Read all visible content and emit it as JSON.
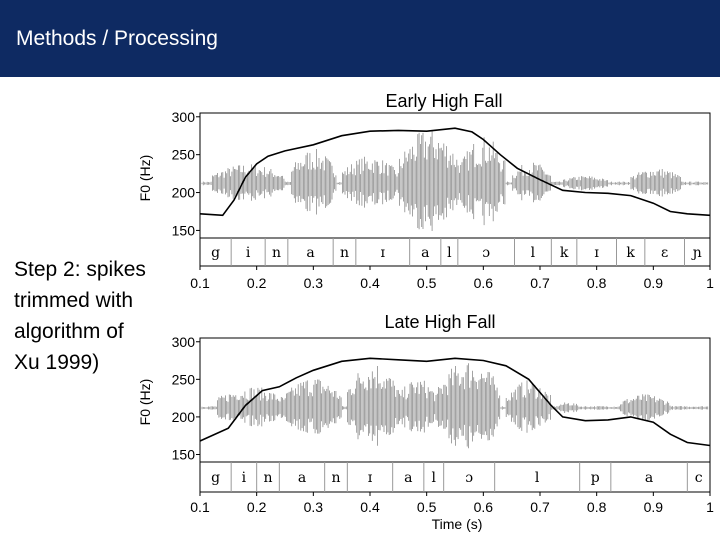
{
  "header": {
    "title": "Methods / Processing"
  },
  "side_text": {
    "lines": [
      "Step 2: spikes",
      "trimmed with",
      "algorithm of",
      "Xu 1999)"
    ]
  },
  "colors": {
    "header_bg": "#0e2a62",
    "waveform": "#8c8c8c",
    "pitch_track": "#000000"
  },
  "chart_data": [
    {
      "type": "line",
      "title": "Early High Fall",
      "xlabel": "",
      "ylabel": "F0 (Hz)",
      "xlim": [
        0.1,
        1.0
      ],
      "ylim": [
        140,
        305
      ],
      "x_ticks": [
        "0.1",
        "0.2",
        "0.3",
        "0.4",
        "0.5",
        "0.6",
        "0.7",
        "0.8",
        "0.9",
        "1"
      ],
      "y_ticks": [
        {
          "value": 300,
          "label": "300"
        },
        {
          "value": 250,
          "label": "250"
        },
        {
          "value": 200,
          "label": "200"
        },
        {
          "value": 150,
          "label": "150"
        }
      ],
      "segments": [
        {
          "label": "g",
          "start": 0.1,
          "end": 0.155
        },
        {
          "label": "i",
          "start": 0.155,
          "end": 0.215
        },
        {
          "label": "n",
          "start": 0.215,
          "end": 0.255
        },
        {
          "label": "a",
          "start": 0.255,
          "end": 0.335
        },
        {
          "label": "n",
          "start": 0.335,
          "end": 0.375
        },
        {
          "label": "ɪ",
          "start": 0.375,
          "end": 0.47
        },
        {
          "label": "a",
          "start": 0.47,
          "end": 0.525
        },
        {
          "label": "l",
          "start": 0.525,
          "end": 0.555
        },
        {
          "label": "ɔ",
          "start": 0.555,
          "end": 0.655
        },
        {
          "label": "l",
          "start": 0.655,
          "end": 0.72
        },
        {
          "label": "k",
          "start": 0.72,
          "end": 0.765
        },
        {
          "label": "ɪ",
          "start": 0.765,
          "end": 0.835
        },
        {
          "label": "k",
          "start": 0.835,
          "end": 0.885
        },
        {
          "label": "ɛ",
          "start": 0.885,
          "end": 0.955
        },
        {
          "label": "ɲ",
          "start": 0.955,
          "end": 1.0
        }
      ],
      "pitch": {
        "x": [
          0.1,
          0.14,
          0.16,
          0.18,
          0.2,
          0.22,
          0.25,
          0.3,
          0.35,
          0.4,
          0.45,
          0.5,
          0.55,
          0.58,
          0.6,
          0.63,
          0.66,
          0.7,
          0.74,
          0.78,
          0.82,
          0.86,
          0.9,
          0.93,
          0.96,
          1.0
        ],
        "y": [
          172,
          170,
          190,
          220,
          238,
          248,
          255,
          263,
          275,
          281,
          282,
          281,
          285,
          280,
          270,
          250,
          232,
          217,
          203,
          200,
          199,
          196,
          186,
          175,
          172,
          170
        ]
      },
      "waveform": [
        {
          "start": 0.12,
          "end": 0.25,
          "amp": 20
        },
        {
          "start": 0.26,
          "end": 0.34,
          "amp": 35
        },
        {
          "start": 0.35,
          "end": 0.45,
          "amp": 28
        },
        {
          "start": 0.45,
          "end": 0.56,
          "amp": 55
        },
        {
          "start": 0.56,
          "end": 0.64,
          "amp": 48
        },
        {
          "start": 0.65,
          "end": 0.72,
          "amp": 22
        },
        {
          "start": 0.74,
          "end": 0.82,
          "amp": 8
        },
        {
          "start": 0.86,
          "end": 0.95,
          "amp": 16
        }
      ]
    },
    {
      "type": "line",
      "title": "Late High Fall",
      "xlabel": "Time (s)",
      "ylabel": "F0 (Hz)",
      "xlim": [
        0.1,
        1.0
      ],
      "ylim": [
        140,
        305
      ],
      "x_ticks": [
        "0.1",
        "0.2",
        "0.3",
        "0.4",
        "0.5",
        "0.6",
        "0.7",
        "0.8",
        "0.9",
        "1"
      ],
      "y_ticks": [
        {
          "value": 300,
          "label": "300"
        },
        {
          "value": 250,
          "label": "250"
        },
        {
          "value": 200,
          "label": "200"
        },
        {
          "value": 150,
          "label": "150"
        }
      ],
      "segments": [
        {
          "label": "g",
          "start": 0.1,
          "end": 0.155
        },
        {
          "label": "i",
          "start": 0.155,
          "end": 0.2
        },
        {
          "label": "n",
          "start": 0.2,
          "end": 0.24
        },
        {
          "label": "a",
          "start": 0.24,
          "end": 0.32
        },
        {
          "label": "n",
          "start": 0.32,
          "end": 0.36
        },
        {
          "label": "ɪ",
          "start": 0.36,
          "end": 0.44
        },
        {
          "label": "a",
          "start": 0.44,
          "end": 0.495
        },
        {
          "label": "l",
          "start": 0.495,
          "end": 0.53
        },
        {
          "label": "ɔ",
          "start": 0.53,
          "end": 0.62
        },
        {
          "label": "l",
          "start": 0.62,
          "end": 0.77
        },
        {
          "label": "p",
          "start": 0.77,
          "end": 0.825
        },
        {
          "label": "a",
          "start": 0.825,
          "end": 0.96
        },
        {
          "label": "c",
          "start": 0.96,
          "end": 1.0
        }
      ],
      "pitch": {
        "x": [
          0.1,
          0.15,
          0.18,
          0.21,
          0.24,
          0.27,
          0.3,
          0.35,
          0.4,
          0.45,
          0.5,
          0.55,
          0.6,
          0.64,
          0.68,
          0.72,
          0.74,
          0.78,
          0.82,
          0.86,
          0.9,
          0.93,
          0.96,
          1.0
        ],
        "y": [
          168,
          185,
          215,
          235,
          240,
          252,
          262,
          274,
          278,
          276,
          274,
          278,
          275,
          268,
          250,
          215,
          200,
          195,
          196,
          200,
          193,
          177,
          166,
          162
        ]
      },
      "waveform": [
        {
          "start": 0.13,
          "end": 0.25,
          "amp": 22
        },
        {
          "start": 0.25,
          "end": 0.35,
          "amp": 32
        },
        {
          "start": 0.36,
          "end": 0.45,
          "amp": 48
        },
        {
          "start": 0.45,
          "end": 0.52,
          "amp": 30
        },
        {
          "start": 0.52,
          "end": 0.63,
          "amp": 50
        },
        {
          "start": 0.64,
          "end": 0.72,
          "amp": 28
        },
        {
          "start": 0.73,
          "end": 0.77,
          "amp": 6
        },
        {
          "start": 0.84,
          "end": 0.93,
          "amp": 14
        }
      ]
    }
  ]
}
